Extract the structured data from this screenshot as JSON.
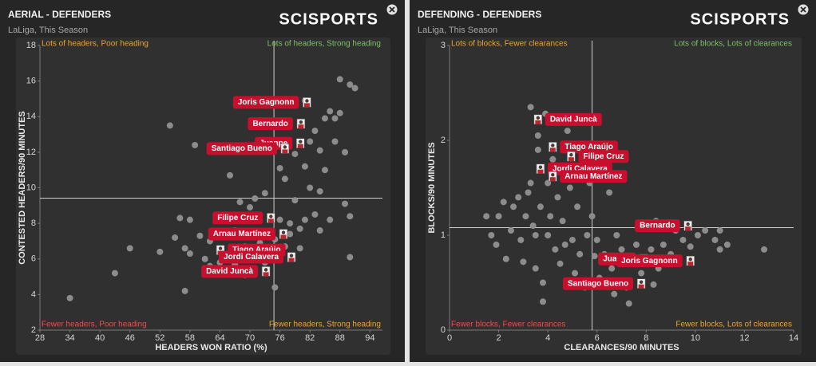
{
  "chart_data": [
    {
      "type": "scatter",
      "title": "AERIAL - DEFENDERS",
      "subtitle": "LaLiga, This Season",
      "brand": "SCISPORTS",
      "x_label": "HEADERS WON RATIO (%)",
      "y_label": "CONTESTED HEADERS/90 MINUTES",
      "xlim": [
        28,
        96.5
      ],
      "ylim": [
        2,
        18
      ],
      "xticks": [
        28,
        34,
        40,
        46,
        52,
        58,
        64,
        70,
        76,
        82,
        88,
        94
      ],
      "yticks": [
        2,
        4,
        6,
        8,
        10,
        12,
        14,
        16,
        18
      ],
      "reference_x": 74.8,
      "reference_y": 9.42,
      "point_color": "#8c8c8c",
      "quadrant_labels": {
        "top_left": {
          "text": "Lots of headers, Poor heading",
          "color": "#e8a33d"
        },
        "top_right": {
          "text": "Lots of headers, Strong heading",
          "color": "#7fbf6a"
        },
        "bottom_left": {
          "text": "Fewer headers, Poor heading",
          "color": "#e0534f"
        },
        "bottom_right": {
          "text": "Fewer headers, Strong heading",
          "color": "#e8a33d"
        }
      },
      "points": {
        "x": [
          34,
          43,
          46,
          52,
          54,
          55,
          56,
          57,
          57,
          58,
          58,
          59,
          60,
          61,
          62,
          62,
          63,
          64,
          65,
          66,
          66,
          67,
          67,
          68,
          68,
          69,
          69,
          70,
          70,
          71,
          72,
          73,
          73,
          74,
          75,
          75,
          76,
          76,
          77,
          77,
          78,
          78,
          79,
          79,
          80,
          80,
          81,
          81,
          82,
          82,
          83,
          83,
          84,
          84,
          85,
          85,
          86,
          86,
          87,
          87,
          88,
          88,
          89,
          89,
          90,
          90,
          90,
          91,
          84,
          81
        ],
        "y": [
          3.8,
          5.2,
          6.6,
          6.4,
          13.5,
          7.2,
          8.3,
          6.6,
          4.2,
          8.2,
          6.3,
          12.4,
          7.3,
          6.0,
          5.6,
          7.0,
          5.3,
          5.8,
          6.2,
          10.7,
          6.3,
          7.6,
          5.7,
          9.2,
          5.4,
          6.7,
          5.1,
          6.0,
          8.9,
          9.4,
          6.9,
          5.8,
          9.7,
          6.2,
          7.1,
          4.4,
          8.2,
          11.1,
          6.7,
          10.5,
          7.4,
          8.0,
          11.9,
          9.3,
          7.7,
          6.6,
          8.2,
          11.2,
          12.6,
          10.0,
          13.2,
          8.5,
          12.1,
          7.6,
          13.9,
          11.0,
          14.3,
          8.2,
          12.6,
          13.9,
          16.1,
          14.2,
          12.0,
          9.1,
          15.8,
          6.1,
          8.4,
          15.6,
          9.8,
          14.9
        ]
      },
      "highlighted": {
        "labels": [
          "Joris Gagnonn",
          "Bernardo",
          "Juanpe",
          "Santiago Bueno",
          "Filipe Cruz",
          "Arnau Martínez",
          "Tiago Araújo",
          "Jordi Calavera",
          "David Juncà"
        ],
        "x": [
          81.4,
          80.2,
          80.1,
          77.0,
          74.2,
          76.7,
          64.1,
          78.3,
          73.2
        ],
        "y": [
          14.8,
          13.6,
          12.5,
          12.2,
          8.3,
          7.4,
          6.5,
          6.1,
          5.3
        ]
      }
    },
    {
      "type": "scatter",
      "title": "DEFENDING - DEFENDERS",
      "subtitle": "LaLiga, This Season",
      "brand": "SCISPORTS",
      "x_label": "CLEARANCES/90 MINUTES",
      "y_label": "BLOCKS/90 MINUTES",
      "xlim": [
        0,
        14
      ],
      "ylim": [
        0,
        3
      ],
      "xticks": [
        0,
        2,
        4,
        6,
        8,
        10,
        12,
        14
      ],
      "yticks": [
        0,
        1,
        2,
        3
      ],
      "reference_x": 5.8,
      "reference_y": 1.08,
      "point_color": "#8c8c8c",
      "quadrant_labels": {
        "top_left": {
          "text": "Lots of blocks, Fewer clearances",
          "color": "#e8a33d"
        },
        "top_right": {
          "text": "Lots of blocks, Lots of clearances",
          "color": "#7fbf6a"
        },
        "bottom_left": {
          "text": "Fewer blocks, Fewer clearances",
          "color": "#e0534f"
        },
        "bottom_right": {
          "text": "Fewer blocks, Lots of clearances",
          "color": "#e8a33d"
        }
      },
      "points": {
        "x": [
          1.5,
          1.7,
          1.9,
          2.0,
          2.2,
          2.3,
          2.5,
          2.6,
          2.8,
          2.9,
          3.0,
          3.1,
          3.2,
          3.3,
          3.3,
          3.4,
          3.5,
          3.5,
          3.6,
          3.6,
          3.7,
          3.8,
          3.8,
          3.9,
          4.0,
          4.0,
          4.1,
          4.2,
          4.3,
          4.4,
          4.5,
          4.6,
          4.7,
          4.8,
          4.9,
          5.0,
          5.1,
          5.2,
          5.3,
          5.4,
          5.5,
          5.6,
          5.7,
          5.8,
          5.9,
          6.0,
          6.1,
          6.3,
          6.5,
          6.6,
          6.8,
          6.9,
          7.0,
          7.2,
          7.4,
          7.6,
          7.8,
          8.0,
          8.2,
          8.3,
          8.5,
          8.7,
          9.0,
          9.2,
          9.5,
          9.8,
          10.1,
          10.4,
          10.8,
          11.0,
          11.3,
          11.0,
          12.8,
          7.3,
          6.7,
          8.4
        ],
        "y": [
          1.2,
          1.0,
          0.9,
          1.2,
          1.35,
          0.75,
          1.05,
          1.3,
          1.4,
          0.95,
          0.72,
          1.2,
          1.45,
          2.35,
          1.55,
          1.1,
          1.0,
          0.65,
          1.9,
          2.05,
          1.3,
          0.5,
          0.3,
          2.28,
          1.55,
          1.0,
          1.2,
          1.8,
          0.85,
          1.4,
          0.7,
          1.15,
          0.9,
          2.1,
          1.5,
          0.95,
          0.6,
          1.3,
          0.8,
          1.75,
          0.45,
          1.0,
          1.55,
          1.2,
          0.78,
          0.95,
          0.55,
          0.8,
          1.45,
          0.65,
          1.0,
          0.5,
          0.85,
          0.45,
          0.7,
          0.9,
          0.6,
          0.75,
          0.85,
          0.48,
          0.65,
          0.9,
          0.8,
          1.05,
          0.95,
          0.88,
          1.0,
          1.05,
          0.95,
          0.85,
          0.9,
          1.05,
          0.85,
          0.28,
          0.38,
          1.15
        ]
      },
      "highlighted": {
        "labels": [
          "David Juncà",
          "Tiago Araújo",
          "Filipe Cruz",
          "Jordi Calavera",
          "Arnau Martínez",
          "Bernardo",
          "Juanpe",
          "Joris Gagnonn",
          "Santiago Bueno"
        ],
        "x": [
          3.6,
          4.2,
          4.95,
          3.7,
          4.2,
          9.7,
          7.9,
          9.8,
          7.8
        ],
        "y": [
          2.22,
          1.93,
          1.83,
          1.7,
          1.62,
          1.1,
          0.75,
          0.73,
          0.49
        ]
      }
    }
  ]
}
